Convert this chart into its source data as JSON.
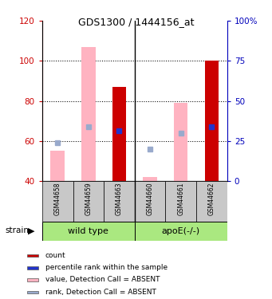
{
  "title": "GDS1300 / 1444156_at",
  "samples": [
    "GSM44658",
    "GSM44659",
    "GSM44663",
    "GSM44660",
    "GSM44661",
    "GSM44662"
  ],
  "group1_label": "wild type",
  "group2_label": "apoE(-/-)",
  "strain_label": "strain",
  "ylim_left": [
    40,
    120
  ],
  "ylim_right": [
    0,
    100
  ],
  "yticks_left": [
    40,
    60,
    80,
    100,
    120
  ],
  "yticks_right": [
    0,
    25,
    50,
    75,
    100
  ],
  "ytick_right_labels": [
    "0",
    "25",
    "50",
    "75",
    "100%"
  ],
  "absent_value_bars": {
    "GSM44658": [
      40,
      55
    ],
    "GSM44659": [
      40,
      107
    ],
    "GSM44660": [
      40,
      42
    ],
    "GSM44661": [
      40,
      79
    ]
  },
  "count_bars": {
    "GSM44663": [
      40,
      87
    ],
    "GSM44662": [
      40,
      100
    ]
  },
  "rank_blue_squares": {
    "GSM44663": 65,
    "GSM44662": 67
  },
  "rank_lightblue_squares": {
    "GSM44658": 59,
    "GSM44659": 67,
    "GSM44660": 56,
    "GSM44661": 64
  },
  "bar_width": 0.45,
  "absent_color": "#ffb3c1",
  "count_color": "#cc0000",
  "rank_blue_color": "#2233cc",
  "rank_lightblue_color": "#99aacc",
  "bg_plot": "#ffffff",
  "tick_label_color_left": "#cc0000",
  "tick_label_color_right": "#0000bb",
  "group_bg_color": "#aae880",
  "sample_bg_color": "#c8c8c8",
  "legend_items": [
    {
      "label": "count",
      "color": "#cc0000"
    },
    {
      "label": "percentile rank within the sample",
      "color": "#2233cc"
    },
    {
      "label": "value, Detection Call = ABSENT",
      "color": "#ffb3c1"
    },
    {
      "label": "rank, Detection Call = ABSENT",
      "color": "#99aacc"
    }
  ]
}
